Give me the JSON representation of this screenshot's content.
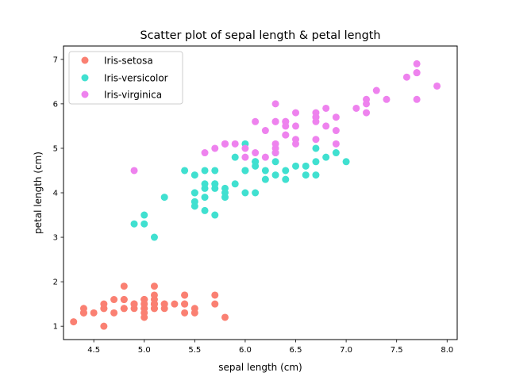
{
  "chart_data": {
    "type": "scatter",
    "title": "Scatter plot of sepal length & petal length",
    "xlabel": "sepal length (cm)",
    "ylabel": "petal length (cm)",
    "xlim": [
      4.2,
      8.1
    ],
    "ylim": [
      0.7,
      7.3
    ],
    "xticks": [
      4.5,
      5.0,
      5.5,
      6.0,
      6.5,
      7.0,
      7.5,
      8.0
    ],
    "xtick_labels": [
      "4.5",
      "5.0",
      "5.5",
      "6.0",
      "6.5",
      "7.0",
      "7.5",
      "8.0"
    ],
    "yticks": [
      1,
      2,
      3,
      4,
      5,
      6,
      7
    ],
    "ytick_labels": [
      "1",
      "2",
      "3",
      "4",
      "5",
      "6",
      "7"
    ],
    "grid": false,
    "legend_position": "upper-left",
    "series": [
      {
        "name": "Iris-setosa",
        "color": "#fa8072",
        "points": [
          [
            5.1,
            1.4
          ],
          [
            4.9,
            1.4
          ],
          [
            4.7,
            1.3
          ],
          [
            4.6,
            1.5
          ],
          [
            5.0,
            1.4
          ],
          [
            5.4,
            1.7
          ],
          [
            4.6,
            1.4
          ],
          [
            5.0,
            1.5
          ],
          [
            4.4,
            1.4
          ],
          [
            4.9,
            1.5
          ],
          [
            5.4,
            1.5
          ],
          [
            4.8,
            1.6
          ],
          [
            4.8,
            1.4
          ],
          [
            4.3,
            1.1
          ],
          [
            5.8,
            1.2
          ],
          [
            5.7,
            1.5
          ],
          [
            5.4,
            1.3
          ],
          [
            5.1,
            1.4
          ],
          [
            5.7,
            1.7
          ],
          [
            5.1,
            1.5
          ],
          [
            5.4,
            1.7
          ],
          [
            5.1,
            1.5
          ],
          [
            4.6,
            1.0
          ],
          [
            5.1,
            1.7
          ],
          [
            4.8,
            1.9
          ],
          [
            5.0,
            1.6
          ],
          [
            5.0,
            1.6
          ],
          [
            5.2,
            1.5
          ],
          [
            5.2,
            1.4
          ],
          [
            4.7,
            1.6
          ],
          [
            4.8,
            1.6
          ],
          [
            5.4,
            1.5
          ],
          [
            5.2,
            1.5
          ],
          [
            5.5,
            1.4
          ],
          [
            4.9,
            1.5
          ],
          [
            5.0,
            1.2
          ],
          [
            5.5,
            1.3
          ],
          [
            4.9,
            1.5
          ],
          [
            4.4,
            1.3
          ],
          [
            5.1,
            1.5
          ],
          [
            5.0,
            1.3
          ],
          [
            4.5,
            1.3
          ],
          [
            4.4,
            1.3
          ],
          [
            5.0,
            1.6
          ],
          [
            5.1,
            1.9
          ],
          [
            4.8,
            1.4
          ],
          [
            5.1,
            1.6
          ],
          [
            4.6,
            1.4
          ],
          [
            5.3,
            1.5
          ],
          [
            5.0,
            1.4
          ]
        ]
      },
      {
        "name": "Iris-versicolor",
        "color": "#40e0d0",
        "points": [
          [
            7.0,
            4.7
          ],
          [
            6.4,
            4.5
          ],
          [
            6.9,
            4.9
          ],
          [
            5.5,
            4.0
          ],
          [
            6.5,
            4.6
          ],
          [
            5.7,
            4.5
          ],
          [
            6.3,
            4.7
          ],
          [
            4.9,
            3.3
          ],
          [
            6.6,
            4.6
          ],
          [
            5.2,
            3.9
          ],
          [
            5.0,
            3.5
          ],
          [
            5.9,
            4.2
          ],
          [
            6.0,
            4.0
          ],
          [
            6.1,
            4.7
          ],
          [
            5.6,
            3.6
          ],
          [
            6.7,
            4.4
          ],
          [
            5.6,
            4.5
          ],
          [
            5.8,
            4.1
          ],
          [
            6.2,
            4.5
          ],
          [
            5.6,
            3.9
          ],
          [
            5.9,
            4.8
          ],
          [
            6.1,
            4.0
          ],
          [
            6.3,
            4.9
          ],
          [
            6.1,
            4.7
          ],
          [
            6.4,
            4.3
          ],
          [
            6.6,
            4.4
          ],
          [
            6.8,
            4.8
          ],
          [
            6.7,
            5.0
          ],
          [
            6.0,
            4.5
          ],
          [
            5.7,
            3.5
          ],
          [
            5.5,
            3.8
          ],
          [
            5.5,
            3.7
          ],
          [
            5.8,
            3.9
          ],
          [
            6.0,
            5.1
          ],
          [
            5.4,
            4.5
          ],
          [
            6.0,
            4.5
          ],
          [
            6.7,
            4.7
          ],
          [
            6.3,
            4.4
          ],
          [
            5.6,
            4.1
          ],
          [
            5.5,
            4.0
          ],
          [
            5.5,
            4.4
          ],
          [
            6.1,
            4.6
          ],
          [
            5.8,
            4.0
          ],
          [
            5.0,
            3.3
          ],
          [
            5.6,
            4.2
          ],
          [
            5.7,
            4.2
          ],
          [
            5.7,
            4.2
          ],
          [
            6.2,
            4.3
          ],
          [
            5.1,
            3.0
          ],
          [
            5.7,
            4.1
          ]
        ]
      },
      {
        "name": "Iris-virginica",
        "color": "#ee82ee",
        "points": [
          [
            6.3,
            6.0
          ],
          [
            5.8,
            5.1
          ],
          [
            7.1,
            5.9
          ],
          [
            6.3,
            5.6
          ],
          [
            6.5,
            5.8
          ],
          [
            7.6,
            6.6
          ],
          [
            4.9,
            4.5
          ],
          [
            7.3,
            6.3
          ],
          [
            6.7,
            5.8
          ],
          [
            7.2,
            6.1
          ],
          [
            6.5,
            5.1
          ],
          [
            6.4,
            5.3
          ],
          [
            6.8,
            5.5
          ],
          [
            5.7,
            5.0
          ],
          [
            5.8,
            5.1
          ],
          [
            6.4,
            5.3
          ],
          [
            6.5,
            5.5
          ],
          [
            7.7,
            6.7
          ],
          [
            7.7,
            6.9
          ],
          [
            6.0,
            5.0
          ],
          [
            6.9,
            5.7
          ],
          [
            5.6,
            4.9
          ],
          [
            7.7,
            6.7
          ],
          [
            6.3,
            4.9
          ],
          [
            6.7,
            5.7
          ],
          [
            7.2,
            6.0
          ],
          [
            6.2,
            4.8
          ],
          [
            6.1,
            4.9
          ],
          [
            6.4,
            5.6
          ],
          [
            7.2,
            5.8
          ],
          [
            7.4,
            6.1
          ],
          [
            7.9,
            6.4
          ],
          [
            6.4,
            5.6
          ],
          [
            6.3,
            5.1
          ],
          [
            6.1,
            5.6
          ],
          [
            7.7,
            6.1
          ],
          [
            6.3,
            5.6
          ],
          [
            6.4,
            5.5
          ],
          [
            6.0,
            4.8
          ],
          [
            6.9,
            5.4
          ],
          [
            6.7,
            5.6
          ],
          [
            6.9,
            5.1
          ],
          [
            5.8,
            5.1
          ],
          [
            6.8,
            5.9
          ],
          [
            6.7,
            5.7
          ],
          [
            6.7,
            5.2
          ],
          [
            6.3,
            5.0
          ],
          [
            6.5,
            5.2
          ],
          [
            6.2,
            5.4
          ],
          [
            5.9,
            5.1
          ]
        ]
      }
    ]
  }
}
